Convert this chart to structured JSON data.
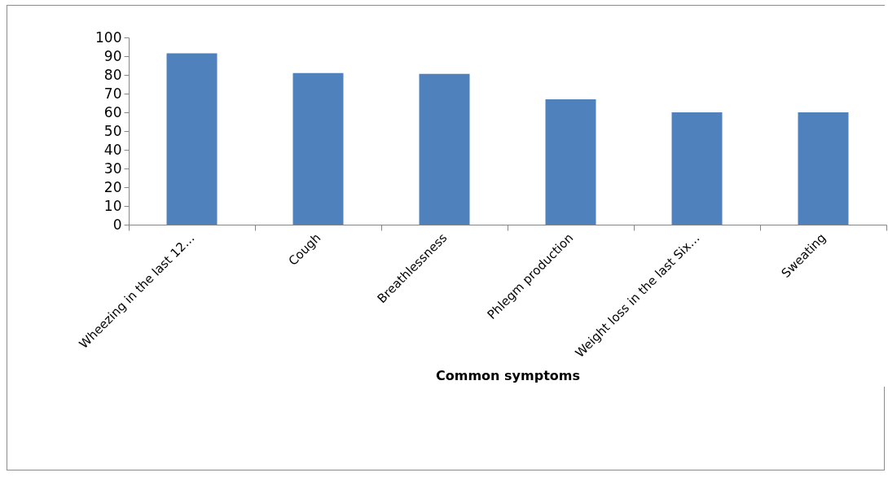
{
  "chart_data": {
    "type": "bar",
    "xlabel": "Common symptoms",
    "categories": [
      "Wheezing in the last 12…",
      "Cough",
      "Breathlessness",
      "Phlegm production",
      "Weight loss in the last Six…",
      "Sweating"
    ],
    "values": [
      91.5,
      81,
      80.5,
      67,
      60,
      60
    ],
    "color": "#4f81bd",
    "ylim": [
      0,
      100
    ],
    "yticks": [
      0,
      10,
      20,
      30,
      40,
      50,
      60,
      70,
      80,
      90,
      100
    ],
    "grid": false
  }
}
